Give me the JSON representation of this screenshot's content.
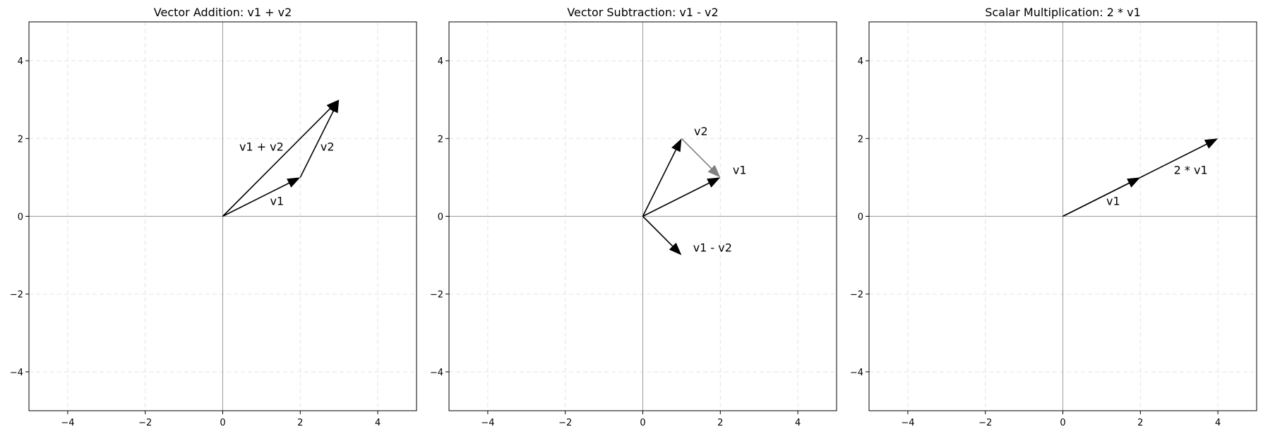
{
  "chart_data": [
    {
      "type": "vector",
      "title": "Vector Addition: v1 + v2",
      "xlim": [
        -5,
        5
      ],
      "ylim": [
        -5,
        5
      ],
      "xticks": [
        "−4",
        "−2",
        "0",
        "2",
        "4"
      ],
      "yticks": [
        "−4",
        "−2",
        "0",
        "2",
        "4"
      ],
      "grid": true,
      "vectors": [
        {
          "label": "v1",
          "start": [
            0,
            0
          ],
          "end": [
            2,
            1
          ],
          "color": "#000000",
          "label_pos": [
            1.4,
            0.4
          ]
        },
        {
          "label": "v2",
          "start": [
            2,
            1
          ],
          "end": [
            3,
            3
          ],
          "color": "#000000",
          "label_pos": [
            2.7,
            1.8
          ]
        },
        {
          "label": "v1 + v2",
          "start": [
            0,
            0
          ],
          "end": [
            3,
            3
          ],
          "color": "#000000",
          "label_pos": [
            1.0,
            1.8
          ]
        }
      ]
    },
    {
      "type": "vector",
      "title": "Vector Subtraction: v1 - v2",
      "xlim": [
        -5,
        5
      ],
      "ylim": [
        -5,
        5
      ],
      "xticks": [
        "−4",
        "−2",
        "0",
        "2",
        "4"
      ],
      "yticks": [
        "−4",
        "−2",
        "0",
        "2",
        "4"
      ],
      "grid": true,
      "vectors": [
        {
          "label": "v1",
          "start": [
            0,
            0
          ],
          "end": [
            2,
            1
          ],
          "color": "#000000",
          "label_pos": [
            2.5,
            1.2
          ]
        },
        {
          "label": "v2",
          "start": [
            0,
            0
          ],
          "end": [
            1,
            2
          ],
          "color": "#000000",
          "label_pos": [
            1.5,
            2.2
          ]
        },
        {
          "label": "",
          "start": [
            1,
            2
          ],
          "end": [
            2,
            1
          ],
          "color": "#808080",
          "label_pos": null
        },
        {
          "label": "v1 - v2",
          "start": [
            0,
            0
          ],
          "end": [
            1,
            -1
          ],
          "color": "#000000",
          "label_pos": [
            1.8,
            -0.8
          ]
        }
      ]
    },
    {
      "type": "vector",
      "title": "Scalar Multiplication: 2 * v1",
      "xlim": [
        -5,
        5
      ],
      "ylim": [
        -5,
        5
      ],
      "xticks": [
        "−4",
        "−2",
        "0",
        "2",
        "4"
      ],
      "yticks": [
        "−4",
        "−2",
        "0",
        "2",
        "4"
      ],
      "grid": true,
      "vectors": [
        {
          "label": "v1",
          "start": [
            0,
            0
          ],
          "end": [
            2,
            1
          ],
          "color": "#000000",
          "label_pos": [
            1.3,
            0.4
          ]
        },
        {
          "label": "2 * v1",
          "start": [
            0,
            0
          ],
          "end": [
            4,
            2
          ],
          "color": "#000000",
          "label_pos": [
            3.3,
            1.2
          ]
        }
      ]
    }
  ]
}
